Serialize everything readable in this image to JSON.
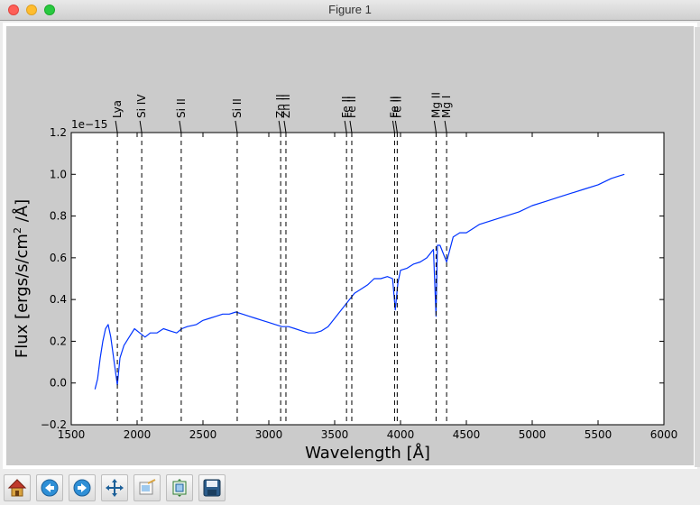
{
  "window": {
    "title": "Figure 1"
  },
  "toolbar": {
    "buttons": [
      "home-icon",
      "back-icon",
      "forward-icon",
      "pan-icon",
      "zoom-icon",
      "subplots-icon",
      "save-icon"
    ]
  },
  "chart_data": {
    "type": "line",
    "xlabel": "Wavelength [Å]",
    "ylabel": "Flux [ergs/s/cm² /Å]",
    "ylabel_parts": {
      "pre": "Flux [ergs/s/cm",
      "sup": "2",
      "post": " /Å]"
    },
    "offset_text": "1e−15",
    "xlim": [
      1500,
      6000
    ],
    "ylim": [
      -0.2,
      1.2
    ],
    "x_ticks": [
      1500,
      2000,
      2500,
      3000,
      3500,
      4000,
      4500,
      5000,
      5500,
      6000
    ],
    "x_tick_labels": [
      "1500",
      "2000",
      "2500",
      "3000",
      "3500",
      "4000",
      "4500",
      "5000",
      "5500",
      "6000"
    ],
    "y_ticks": [
      -0.2,
      0.0,
      0.2,
      0.4,
      0.6,
      0.8,
      1.0,
      1.2
    ],
    "y_tick_labels": [
      "−0.2",
      "0.0",
      "0.2",
      "0.4",
      "0.6",
      "0.8",
      "1.0",
      "1.2"
    ],
    "grid": false,
    "line_color": "#0033ff",
    "line_labels": [
      {
        "label": "Lya",
        "x": 1850
      },
      {
        "label": "Si IV",
        "x": 2035
      },
      {
        "label": "Si II",
        "x": 2335
      },
      {
        "label": "Si II",
        "x": 2760
      },
      {
        "label": "Zn II",
        "x": 3090
      },
      {
        "label": "Zn II",
        "x": 3130
      },
      {
        "label": "Fe II",
        "x": 3590
      },
      {
        "label": "Fe II",
        "x": 3630
      },
      {
        "label": "Fe II",
        "x": 3955
      },
      {
        "label": "Fe II",
        "x": 3975
      },
      {
        "label": "Mg II",
        "x": 4270
      },
      {
        "label": "Mg I",
        "x": 4350
      }
    ],
    "series": [
      {
        "x": [
          1680,
          1700,
          1720,
          1740,
          1760,
          1780,
          1800,
          1830,
          1850,
          1870,
          1900,
          1940,
          1980,
          2020,
          2060,
          2100,
          2150,
          2200,
          2250,
          2300,
          2340,
          2380,
          2450,
          2500,
          2550,
          2600,
          2650,
          2700,
          2750,
          2800,
          2850,
          2900,
          2950,
          3000,
          3050,
          3100,
          3150,
          3200,
          3250,
          3300,
          3350,
          3400,
          3450,
          3500,
          3550,
          3600,
          3650,
          3700,
          3750,
          3800,
          3850,
          3900,
          3940,
          3960,
          3980,
          4000,
          4050,
          4100,
          4150,
          4200,
          4250,
          4270,
          4280,
          4300,
          4350,
          4400,
          4450,
          4500,
          4550,
          4600,
          4700,
          4800,
          4900,
          5000,
          5100,
          5200,
          5300,
          5400,
          5500,
          5600,
          5650,
          5700
        ],
        "y": [
          -0.03,
          0.02,
          0.12,
          0.2,
          0.26,
          0.28,
          0.22,
          0.08,
          -0.01,
          0.12,
          0.18,
          0.22,
          0.26,
          0.24,
          0.22,
          0.24,
          0.24,
          0.26,
          0.25,
          0.24,
          0.26,
          0.27,
          0.28,
          0.3,
          0.31,
          0.32,
          0.33,
          0.33,
          0.34,
          0.33,
          0.32,
          0.31,
          0.3,
          0.29,
          0.28,
          0.27,
          0.27,
          0.26,
          0.25,
          0.24,
          0.24,
          0.25,
          0.27,
          0.31,
          0.35,
          0.39,
          0.43,
          0.45,
          0.47,
          0.5,
          0.5,
          0.51,
          0.5,
          0.35,
          0.48,
          0.54,
          0.55,
          0.57,
          0.58,
          0.6,
          0.64,
          0.32,
          0.66,
          0.66,
          0.58,
          0.7,
          0.72,
          0.72,
          0.74,
          0.76,
          0.78,
          0.8,
          0.82,
          0.85,
          0.87,
          0.89,
          0.91,
          0.93,
          0.95,
          0.98,
          0.99,
          1.0
        ]
      }
    ]
  }
}
